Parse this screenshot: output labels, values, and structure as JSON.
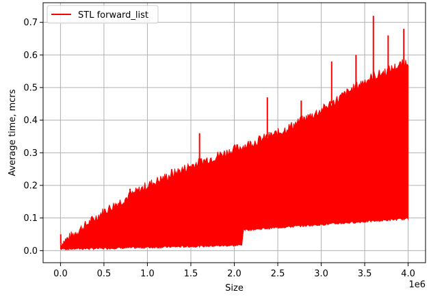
{
  "chart_data": {
    "type": "line",
    "title": "",
    "xlabel": "Size",
    "ylabel": "Average time, mcrs",
    "x_offset_label": "1e6",
    "xlim": [
      -0.2,
      4.2
    ],
    "ylim": [
      -0.037,
      0.76
    ],
    "grid": true,
    "legend_position": "top-left",
    "x_ticks": [
      0.0,
      0.5,
      1.0,
      1.5,
      2.0,
      2.5,
      3.0,
      3.5,
      4.0
    ],
    "x_tick_labels": [
      "0.0",
      "0.5",
      "1.0",
      "1.5",
      "2.0",
      "2.5",
      "3.0",
      "3.5",
      "4.0"
    ],
    "y_ticks": [
      0.0,
      0.1,
      0.2,
      0.3,
      0.4,
      0.5,
      0.6,
      0.7
    ],
    "y_tick_labels": [
      "0.0",
      "0.1",
      "0.2",
      "0.3",
      "0.4",
      "0.5",
      "0.6",
      "0.7"
    ],
    "series": [
      {
        "name": "STL forward_list",
        "color": "#ff0000",
        "lower_envelope": {
          "x": [
            0.0,
            0.5,
            1.0,
            1.5,
            2.0,
            2.09,
            2.1,
            2.5,
            3.0,
            3.5,
            4.0
          ],
          "y": [
            0.002,
            0.004,
            0.007,
            0.01,
            0.013,
            0.014,
            0.06,
            0.068,
            0.077,
            0.086,
            0.095
          ]
        },
        "upper_envelope": {
          "x": [
            0.0,
            0.5,
            1.0,
            1.5,
            2.0,
            2.5,
            3.0,
            3.5,
            4.0
          ],
          "y": [
            0.02,
            0.12,
            0.2,
            0.26,
            0.31,
            0.36,
            0.43,
            0.52,
            0.58
          ]
        },
        "spikes": [
          {
            "x": 0.003,
            "y": 0.05
          },
          {
            "x": 0.8,
            "y": 0.19
          },
          {
            "x": 1.28,
            "y": 0.25
          },
          {
            "x": 1.6,
            "y": 0.36
          },
          {
            "x": 2.38,
            "y": 0.47
          },
          {
            "x": 2.77,
            "y": 0.46
          },
          {
            "x": 3.12,
            "y": 0.58
          },
          {
            "x": 3.4,
            "y": 0.6
          },
          {
            "x": 3.6,
            "y": 0.72
          },
          {
            "x": 3.77,
            "y": 0.66
          },
          {
            "x": 3.95,
            "y": 0.68
          }
        ]
      }
    ]
  }
}
